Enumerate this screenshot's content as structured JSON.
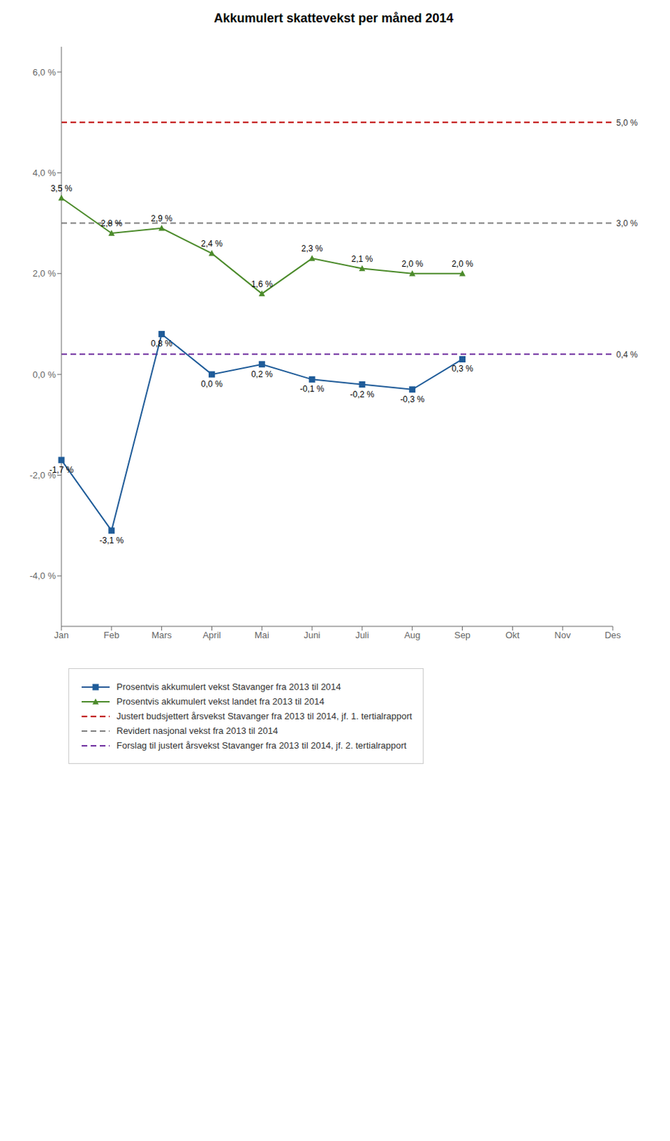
{
  "chart_data": {
    "type": "line",
    "title": "Akkumulert skattevekst per måned 2014",
    "categories": [
      "Jan",
      "Feb",
      "Mars",
      "April",
      "Mai",
      "Juni",
      "Juli",
      "Aug",
      "Sep",
      "Okt",
      "Nov",
      "Des"
    ],
    "series": [
      {
        "name": "Prosentvis akkumulert vekst Stavanger fra 2013 til 2014",
        "color": "#1F5C99",
        "marker": "square",
        "values": [
          -1.7,
          -3.1,
          0.8,
          0.0,
          0.2,
          -0.1,
          -0.2,
          -0.3,
          0.3,
          null,
          null,
          null
        ],
        "value_labels": [
          "-1,7 %",
          "-3,1 %",
          "0,8 %",
          "0,0 %",
          "0,2 %",
          "-0,1 %",
          "-0,2 %",
          "-0,3 %",
          "0,3 %",
          null,
          null,
          null
        ]
      },
      {
        "name": "Prosentvis akkumulert vekst landet fra 2013 til 2014",
        "color": "#4C8B2B",
        "marker": "triangle",
        "values": [
          3.5,
          2.8,
          2.9,
          2.4,
          1.6,
          2.3,
          2.1,
          2.0,
          2.0,
          null,
          null,
          null
        ],
        "value_labels": [
          "3,5 %",
          "2,8 %",
          "2,9 %",
          "2,4 %",
          "1,6 %",
          "2,3 %",
          "2,1 %",
          "2,0 %",
          "2,0 %",
          null,
          null,
          null
        ]
      }
    ],
    "hlines": [
      {
        "name": "Justert budsjettert årsvekst Stavanger fra 2013 til 2014, jf. 1. tertialrapport",
        "value": 5.0,
        "label": "5,0 %",
        "color": "#C00000",
        "line_style": "dashed"
      },
      {
        "name": "Revidert nasjonal vekst fra 2013 til 2014",
        "value": 3.0,
        "label": "3,0 %",
        "color": "#808080",
        "line_style": "dashed"
      },
      {
        "name": "Forslag til justert årsvekst Stavanger fra 2013 til 2014, jf. 2. tertialrapport",
        "value": 0.4,
        "label": "0,4 %",
        "color": "#7030A0",
        "line_style": "dashed"
      }
    ],
    "ylim": [
      -5.0,
      6.5
    ],
    "yticks": [
      {
        "value": -4.0,
        "label": "-4,0 %"
      },
      {
        "value": -2.0,
        "label": "-2,0 %"
      },
      {
        "value": 0.0,
        "label": "0,0 %"
      },
      {
        "value": 2.0,
        "label": "2,0 %"
      },
      {
        "value": 4.0,
        "label": "4,0 %"
      },
      {
        "value": 6.0,
        "label": "6,0 %"
      }
    ],
    "data_labels": true,
    "grid": false,
    "legend": "bottom"
  }
}
